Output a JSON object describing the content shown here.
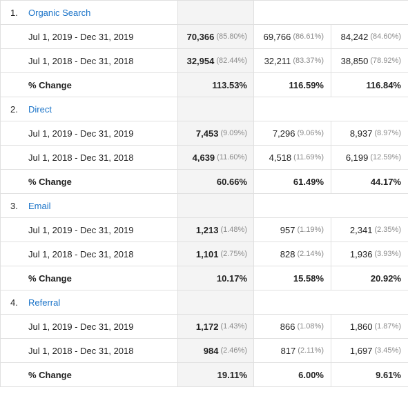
{
  "groups": [
    {
      "index": "1.",
      "name": "Organic Search",
      "rows": [
        {
          "label": "Jul 1, 2019 - Dec 31, 2019",
          "m1": "70,366",
          "m1_pct": "(85.80%)",
          "m2": "69,766",
          "m2_pct": "(86.61%)",
          "m3": "84,242",
          "m3_pct": "(84.60%)"
        },
        {
          "label": "Jul 1, 2018 - Dec 31, 2018",
          "m1": "32,954",
          "m1_pct": "(82.44%)",
          "m2": "32,211",
          "m2_pct": "(83.37%)",
          "m3": "38,850",
          "m3_pct": "(78.92%)"
        }
      ],
      "change": {
        "label": "% Change",
        "m1": "113.53%",
        "m2": "116.59%",
        "m3": "116.84%"
      }
    },
    {
      "index": "2.",
      "name": "Direct",
      "rows": [
        {
          "label": "Jul 1, 2019 - Dec 31, 2019",
          "m1": "7,453",
          "m1_pct": "(9.09%)",
          "m2": "7,296",
          "m2_pct": "(9.06%)",
          "m3": "8,937",
          "m3_pct": "(8.97%)"
        },
        {
          "label": "Jul 1, 2018 - Dec 31, 2018",
          "m1": "4,639",
          "m1_pct": "(11.60%)",
          "m2": "4,518",
          "m2_pct": "(11.69%)",
          "m3": "6,199",
          "m3_pct": "(12.59%)"
        }
      ],
      "change": {
        "label": "% Change",
        "m1": "60.66%",
        "m2": "61.49%",
        "m3": "44.17%"
      }
    },
    {
      "index": "3.",
      "name": "Email",
      "rows": [
        {
          "label": "Jul 1, 2019 - Dec 31, 2019",
          "m1": "1,213",
          "m1_pct": "(1.48%)",
          "m2": "957",
          "m2_pct": "(1.19%)",
          "m3": "2,341",
          "m3_pct": "(2.35%)"
        },
        {
          "label": "Jul 1, 2018 - Dec 31, 2018",
          "m1": "1,101",
          "m1_pct": "(2.75%)",
          "m2": "828",
          "m2_pct": "(2.14%)",
          "m3": "1,936",
          "m3_pct": "(3.93%)"
        }
      ],
      "change": {
        "label": "% Change",
        "m1": "10.17%",
        "m2": "15.58%",
        "m3": "20.92%"
      }
    },
    {
      "index": "4.",
      "name": "Referral",
      "rows": [
        {
          "label": "Jul 1, 2019 - Dec 31, 2019",
          "m1": "1,172",
          "m1_pct": "(1.43%)",
          "m2": "866",
          "m2_pct": "(1.08%)",
          "m3": "1,860",
          "m3_pct": "(1.87%)"
        },
        {
          "label": "Jul 1, 2018 - Dec 31, 2018",
          "m1": "984",
          "m1_pct": "(2.46%)",
          "m2": "817",
          "m2_pct": "(2.11%)",
          "m3": "1,697",
          "m3_pct": "(3.45%)"
        }
      ],
      "change": {
        "label": "% Change",
        "m1": "19.11%",
        "m2": "6.00%",
        "m3": "9.61%"
      }
    }
  ]
}
